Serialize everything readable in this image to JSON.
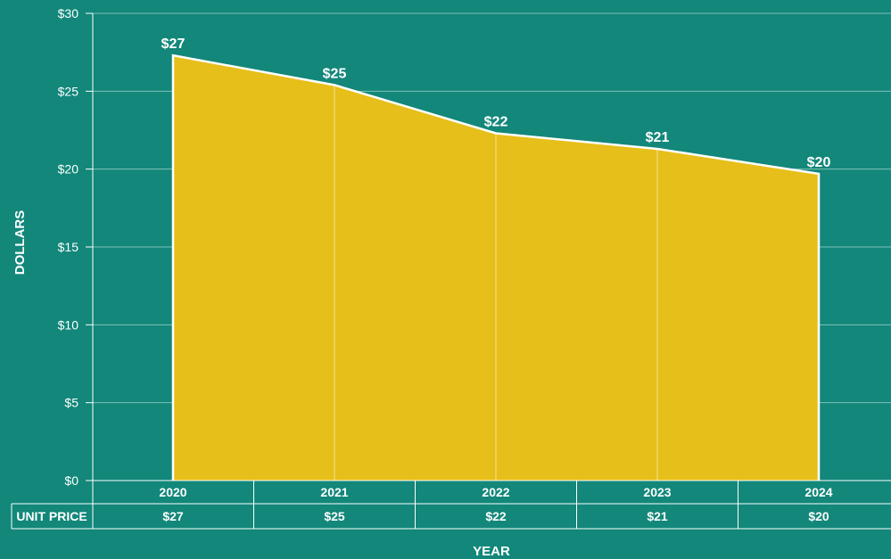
{
  "chart_data": {
    "type": "area",
    "title": "",
    "xlabel": "YEAR",
    "ylabel": "DOLLARS",
    "categories": [
      "2020",
      "2021",
      "2022",
      "2023",
      "2024"
    ],
    "series": [
      {
        "name": "UNIT PRICE",
        "values": [
          27.3,
          25.4,
          22.3,
          21.3,
          19.7
        ],
        "data_labels": [
          "$27",
          "$25",
          "$22",
          "$21",
          "$20"
        ],
        "color": "#e6bf1a"
      }
    ],
    "ylim": [
      0,
      30
    ],
    "yticks": [
      0,
      5,
      10,
      15,
      20,
      25,
      30
    ],
    "ytick_labels": [
      "$0",
      "$5",
      "$10",
      "$15",
      "$20",
      "$25",
      "$30"
    ],
    "grid": true,
    "data_table": {
      "row_label": "UNIT PRICE",
      "values": [
        "$27",
        "$25",
        "$22",
        "$21",
        "$20"
      ]
    }
  },
  "colors": {
    "background": "#12877a",
    "area_fill": "#e6bf1a",
    "line": "#ffffff",
    "grid": "#7fc2b9"
  }
}
